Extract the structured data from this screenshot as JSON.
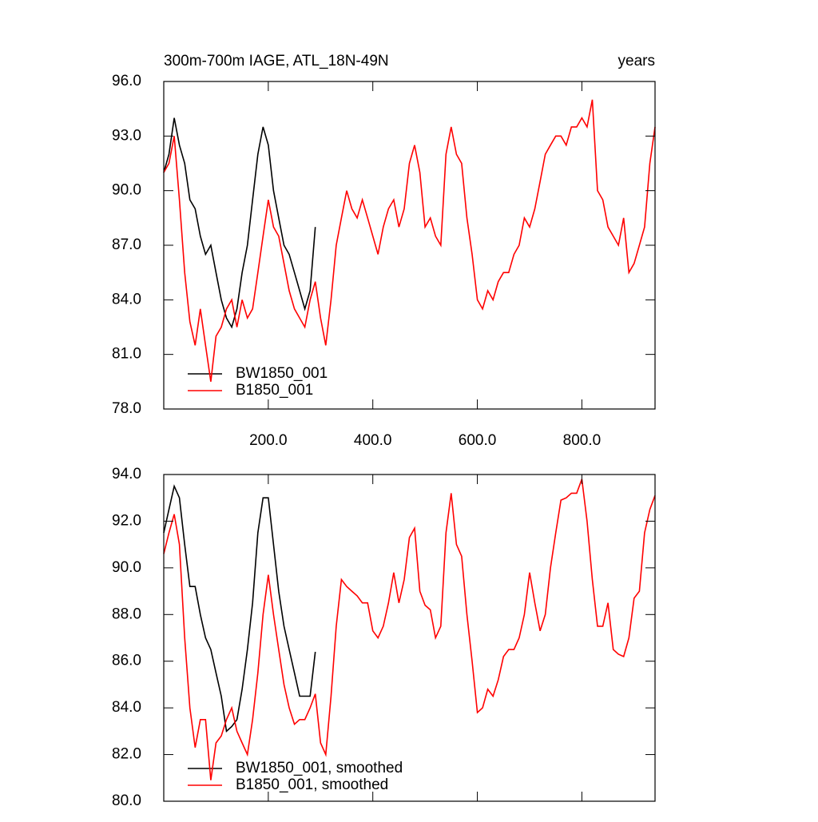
{
  "chart_data": [
    {
      "type": "line",
      "title": "300m-700m IAGE, ATL_18N-49N",
      "subtitle": "years",
      "xlim": [
        0,
        940
      ],
      "ylim": [
        78,
        96
      ],
      "xticks": [
        {
          "value": 200,
          "label": "200.0"
        },
        {
          "value": 400,
          "label": "400.0"
        },
        {
          "value": 600,
          "label": "600.0"
        },
        {
          "value": 800,
          "label": "800.0"
        }
      ],
      "yticks": [
        {
          "value": 78,
          "label": "78.0"
        },
        {
          "value": 81,
          "label": "81.0"
        },
        {
          "value": 84,
          "label": "84.0"
        },
        {
          "value": 87,
          "label": "87.0"
        },
        {
          "value": 90,
          "label": "90.0"
        },
        {
          "value": 93,
          "label": "93.0"
        },
        {
          "value": 96,
          "label": "96.0"
        }
      ],
      "xtick_labels": true,
      "series": [
        {
          "name": "BW1850_001",
          "color": "#000000",
          "x": [
            0,
            10,
            20,
            30,
            40,
            50,
            60,
            70,
            80,
            90,
            100,
            110,
            120,
            130,
            140,
            150,
            160,
            170,
            180,
            190,
            200,
            210,
            220,
            230,
            240,
            250,
            260,
            270,
            280,
            290
          ],
          "values": [
            91,
            92,
            94,
            92.5,
            91.5,
            89.5,
            89,
            87.5,
            86.5,
            87,
            85.5,
            84,
            83,
            82.5,
            83.5,
            85.5,
            87,
            89.5,
            92,
            93.5,
            92.5,
            90,
            88.5,
            87,
            86.5,
            85.5,
            84.5,
            83.5,
            84.5,
            88
          ]
        },
        {
          "name": "B1850_001",
          "color": "#ff0000",
          "x": [
            0,
            10,
            20,
            30,
            40,
            50,
            60,
            70,
            80,
            90,
            100,
            110,
            120,
            130,
            140,
            150,
            160,
            170,
            180,
            190,
            200,
            210,
            220,
            230,
            240,
            250,
            260,
            270,
            280,
            290,
            300,
            310,
            320,
            330,
            340,
            350,
            360,
            370,
            380,
            390,
            400,
            410,
            420,
            430,
            440,
            450,
            460,
            470,
            480,
            490,
            500,
            510,
            520,
            530,
            540,
            550,
            560,
            570,
            580,
            590,
            600,
            610,
            620,
            630,
            640,
            650,
            660,
            670,
            680,
            690,
            700,
            710,
            720,
            730,
            740,
            750,
            760,
            770,
            780,
            790,
            800,
            810,
            820,
            830,
            840,
            850,
            860,
            870,
            880,
            890,
            900,
            910,
            920,
            930,
            940
          ],
          "values": [
            91,
            91.5,
            93,
            89.5,
            85.5,
            82.8,
            81.5,
            83.5,
            81.5,
            79.5,
            82,
            82.5,
            83.5,
            84,
            82.5,
            84,
            83,
            83.5,
            85.5,
            87.5,
            89.5,
            88,
            87.5,
            86,
            84.5,
            83.5,
            83,
            82.5,
            84,
            85,
            83,
            81.5,
            84,
            87,
            88.5,
            90,
            89,
            88.5,
            89.5,
            88.5,
            87.5,
            86.5,
            88,
            89,
            89.5,
            88,
            89,
            91.5,
            92.5,
            91,
            88,
            88.5,
            87.5,
            87,
            92,
            93.5,
            92,
            91.5,
            88.5,
            86.5,
            84,
            83.5,
            84.5,
            84,
            85,
            85.5,
            85.5,
            86.5,
            87,
            88.5,
            88,
            89,
            90.5,
            92,
            92.5,
            93,
            93,
            92.5,
            93.5,
            93.5,
            94,
            93.5,
            95,
            90,
            89.5,
            88,
            87.5,
            87,
            88.5,
            85.5,
            86,
            87,
            88,
            91.5,
            93.5
          ]
        }
      ]
    },
    {
      "type": "line",
      "xlim": [
        0,
        940
      ],
      "ylim": [
        80,
        94
      ],
      "xticks": [
        200,
        400,
        600,
        800
      ],
      "yticks": [
        {
          "value": 80,
          "label": "80.0"
        },
        {
          "value": 82,
          "label": "82.0"
        },
        {
          "value": 84,
          "label": "84.0"
        },
        {
          "value": 86,
          "label": "86.0"
        },
        {
          "value": 88,
          "label": "88.0"
        },
        {
          "value": 90,
          "label": "90.0"
        },
        {
          "value": 92,
          "label": "92.0"
        },
        {
          "value": 94,
          "label": "94.0"
        }
      ],
      "xtick_labels": false,
      "series": [
        {
          "name": "BW1850_001, smoothed",
          "color": "#000000",
          "x": [
            0,
            10,
            20,
            30,
            40,
            50,
            60,
            70,
            80,
            90,
            100,
            110,
            120,
            130,
            140,
            150,
            160,
            170,
            180,
            190,
            200,
            210,
            220,
            230,
            240,
            250,
            260,
            270,
            280,
            290
          ],
          "values": [
            91.5,
            92.5,
            93.5,
            93,
            91,
            89.2,
            89.2,
            88,
            87,
            86.5,
            85.5,
            84.5,
            83,
            83.2,
            83.5,
            84.8,
            86.5,
            88.5,
            91.5,
            93,
            93,
            91,
            89,
            87.5,
            86.5,
            85.5,
            84.5,
            84.5,
            84.5,
            86.4
          ]
        },
        {
          "name": "B1850_001, smoothed",
          "color": "#ff0000",
          "x": [
            0,
            10,
            20,
            30,
            40,
            50,
            60,
            70,
            80,
            90,
            100,
            110,
            120,
            130,
            140,
            150,
            160,
            170,
            180,
            190,
            200,
            210,
            220,
            230,
            240,
            250,
            260,
            270,
            280,
            290,
            300,
            310,
            320,
            330,
            340,
            350,
            360,
            370,
            380,
            390,
            400,
            410,
            420,
            430,
            440,
            450,
            460,
            470,
            480,
            490,
            500,
            510,
            520,
            530,
            540,
            550,
            560,
            570,
            580,
            590,
            600,
            610,
            620,
            630,
            640,
            650,
            660,
            670,
            680,
            690,
            700,
            710,
            720,
            730,
            740,
            750,
            760,
            770,
            780,
            790,
            800,
            810,
            820,
            830,
            840,
            850,
            860,
            870,
            880,
            890,
            900,
            910,
            920,
            930,
            940
          ],
          "values": [
            90.6,
            91.5,
            92.3,
            91,
            87,
            84,
            82.3,
            83.5,
            83.5,
            80.9,
            82.5,
            82.8,
            83.5,
            84,
            83,
            82.5,
            82,
            83.5,
            85.5,
            88,
            89.7,
            88,
            86.5,
            85,
            84,
            83.3,
            83.5,
            83.5,
            84,
            84.6,
            82.5,
            82,
            84.5,
            87.5,
            89.5,
            89.2,
            89,
            88.8,
            88.5,
            88.5,
            87.3,
            87,
            87.5,
            88.5,
            89.8,
            88.5,
            89.5,
            91.3,
            91.7,
            89,
            88.4,
            88.2,
            87,
            87.5,
            91.5,
            93.2,
            91,
            90.5,
            88,
            86,
            83.8,
            84,
            84.8,
            84.5,
            85.2,
            86.2,
            86.5,
            86.5,
            87,
            88,
            89.8,
            88.5,
            87.3,
            88,
            90,
            91.5,
            92.9,
            93,
            93.2,
            93.2,
            93.8,
            92,
            89.5,
            87.5,
            87.5,
            88.5,
            86.5,
            86.3,
            86.2,
            87,
            88.7,
            89,
            91.5,
            92.5,
            93.1
          ]
        }
      ]
    }
  ]
}
